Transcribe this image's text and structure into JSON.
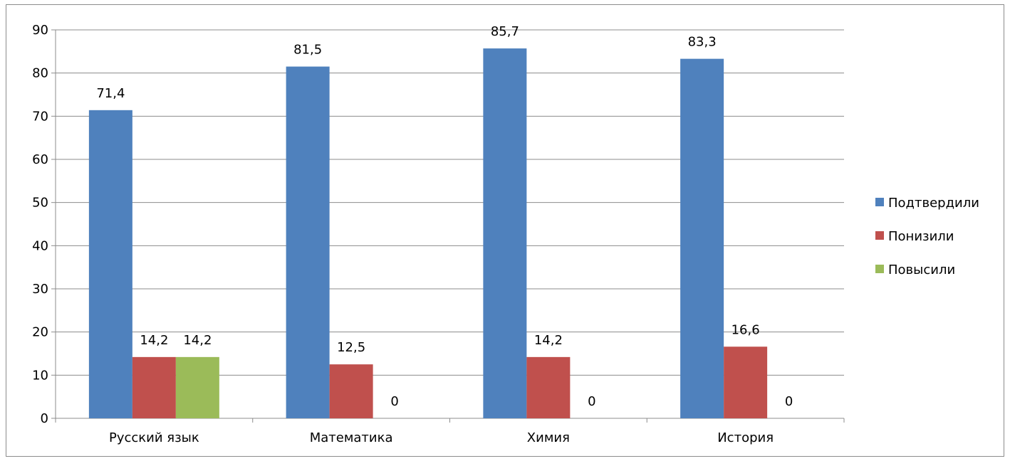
{
  "chart_data": {
    "type": "bar",
    "categories": [
      "Русский язык",
      "Математика",
      "Химия",
      "История"
    ],
    "series": [
      {
        "name": "Подтвердили",
        "color": "#4f81bd",
        "values": [
          71.4,
          81.5,
          85.7,
          83.3
        ],
        "labels": [
          "71,4",
          "81,5",
          "85,7",
          "83,3"
        ]
      },
      {
        "name": "Понизили",
        "color": "#c0504d",
        "values": [
          14.2,
          12.5,
          14.2,
          16.6
        ],
        "labels": [
          "14,2",
          "12,5",
          "14,2",
          "16,6"
        ]
      },
      {
        "name": "Повысили",
        "color": "#9bbb59",
        "values": [
          14.2,
          0,
          0,
          0
        ],
        "labels": [
          "14,2",
          "0",
          "0",
          "0"
        ]
      }
    ],
    "ylim": [
      0,
      90
    ],
    "yticks": [
      0,
      10,
      20,
      30,
      40,
      50,
      60,
      70,
      80,
      90
    ],
    "grid": true,
    "legend_position": "right"
  }
}
